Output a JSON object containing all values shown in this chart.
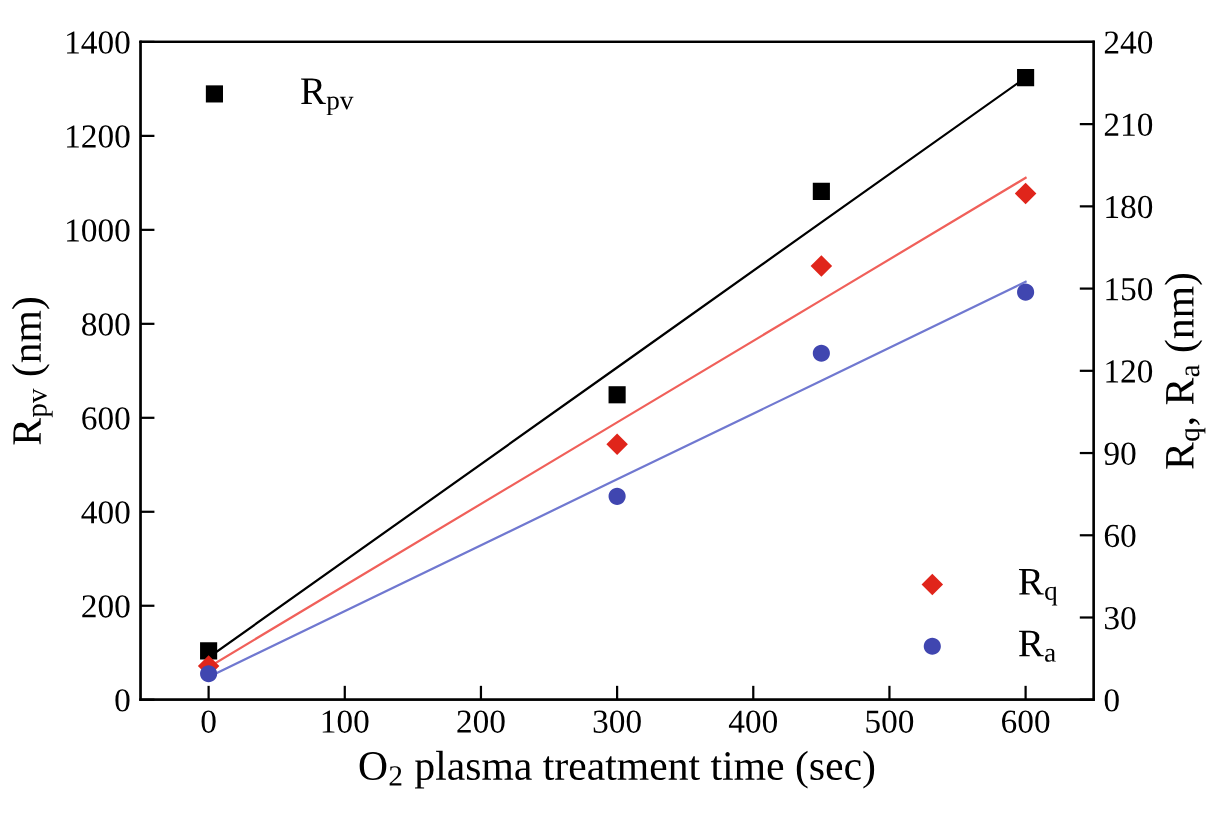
{
  "chart_data": {
    "type": "scatter",
    "x": [
      0,
      300,
      450,
      600
    ],
    "series": [
      {
        "name": "R$_{pv}$",
        "color": "#000000",
        "marker": "square",
        "values": [
          104,
          649,
          1082,
          1324
        ]
      },
      {
        "name": "R$_{q}$",
        "color": "#e0251b",
        "marker": "diamond",
        "axis": "y2",
        "values": [
          12.3,
          93.2,
          158.2,
          184.7
        ]
      },
      {
        "name": "R$_{a}$",
        "color": "#4046b0",
        "marker": "circle",
        "axis": "y2",
        "values": [
          9.5,
          74.2,
          126.4,
          148.7
        ]
      },
      {
        "type": "line",
        "color": "#000000",
        "values": [
          90,
          707,
          1016,
          1324
        ]
      },
      {
        "type": "line",
        "color": "#f0605a",
        "axis": "y2",
        "values": [
          11.9,
          101.2,
          145.8,
          190.4
        ]
      },
      {
        "type": "line",
        "color": "#7078d0",
        "axis": "y2",
        "values": [
          8.3,
          80.4,
          116.4,
          152.5
        ]
      }
    ],
    "xlabel": "O$_{2}$ plasma treatment time (sec)",
    "ylabel": "R$_{pv}$ (nm)",
    "y2label": "R$_{q}$, R$_{a}$ (nm)",
    "xlim": [
      -50,
      650
    ],
    "xticks": [
      0,
      100,
      200,
      300,
      400,
      500,
      600
    ],
    "ylim": [
      0,
      1400
    ],
    "yticks": [
      0,
      200,
      400,
      600,
      800,
      1000,
      1200,
      1400
    ],
    "y2lim": [
      0,
      240
    ],
    "y2ticks": [
      0,
      30,
      60,
      90,
      120,
      150,
      180,
      210,
      240
    ],
    "grid": false,
    "legend": "top left"
  }
}
